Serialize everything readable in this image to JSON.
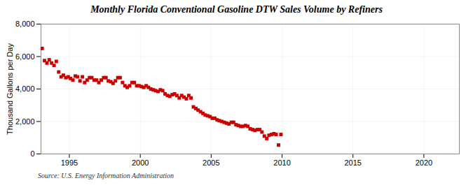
{
  "chart_data": {
    "type": "scatter",
    "title": "Monthly Florida Conventional Gasoline DTW Sales Volume by Refiners",
    "ylabel": "Thousand Gallons per Day",
    "caption": "Source: U.S. Energy Information Administration",
    "color": "#CC0000",
    "marker": "square",
    "grid": true,
    "xlim": [
      1993.0,
      2022.5
    ],
    "ylim": [
      0,
      8000
    ],
    "xticks": [
      1995,
      2000,
      2005,
      2010,
      2015,
      2020
    ],
    "yticks": [
      0,
      {
        "value": 2000,
        "label": "2,000"
      },
      {
        "value": 4000,
        "label": "4,000"
      },
      {
        "value": 6000,
        "label": "6,000"
      },
      {
        "value": 8000,
        "label": "8,000"
      }
    ],
    "x": [
      1993.08,
      1993.25,
      1993.42,
      1993.58,
      1993.75,
      1993.92,
      1994.08,
      1994.25,
      1994.42,
      1994.58,
      1994.75,
      1994.92,
      1995.08,
      1995.25,
      1995.42,
      1995.58,
      1995.75,
      1995.92,
      1996.08,
      1996.25,
      1996.42,
      1996.58,
      1996.75,
      1996.92,
      1997.08,
      1997.25,
      1997.42,
      1997.58,
      1997.75,
      1997.92,
      1998.08,
      1998.25,
      1998.42,
      1998.58,
      1998.75,
      1998.92,
      1999.08,
      1999.25,
      1999.42,
      1999.58,
      1999.75,
      1999.92,
      2000.08,
      2000.25,
      2000.42,
      2000.58,
      2000.75,
      2000.92,
      2001.08,
      2001.25,
      2001.42,
      2001.58,
      2001.75,
      2001.92,
      2002.08,
      2002.25,
      2002.42,
      2002.58,
      2002.75,
      2002.92,
      2003.08,
      2003.25,
      2003.42,
      2003.58,
      2003.75,
      2003.92,
      2004.08,
      2004.25,
      2004.42,
      2004.58,
      2004.75,
      2004.92,
      2005.08,
      2005.25,
      2005.42,
      2005.58,
      2005.75,
      2005.92,
      2006.08,
      2006.25,
      2006.42,
      2006.58,
      2006.75,
      2006.92,
      2007.08,
      2007.25,
      2007.42,
      2007.58,
      2007.75,
      2007.92,
      2008.08,
      2008.25,
      2008.42,
      2008.58,
      2008.75,
      2008.92,
      2009.08,
      2009.25,
      2009.42,
      2009.58,
      2009.75,
      2009.92
    ],
    "values": [
      6500,
      5750,
      5600,
      5800,
      5600,
      5450,
      5700,
      5050,
      4750,
      4850,
      4700,
      4750,
      4650,
      4550,
      4800,
      4750,
      4500,
      4750,
      4400,
      4550,
      4700,
      4700,
      4550,
      4550,
      4400,
      4550,
      4700,
      4700,
      4500,
      4450,
      4350,
      4500,
      4700,
      4700,
      4400,
      4200,
      4100,
      4200,
      4400,
      4400,
      4200,
      4200,
      4150,
      4100,
      4200,
      4100,
      4000,
      3950,
      3900,
      3850,
      3950,
      3900,
      3700,
      3600,
      3550,
      3650,
      3700,
      3600,
      3450,
      3600,
      3500,
      3400,
      3600,
      3450,
      2900,
      2800,
      2700,
      2600,
      2500,
      2400,
      2350,
      2300,
      2200,
      2200,
      2100,
      2050,
      2000,
      1950,
      1900,
      1850,
      1950,
      1950,
      1800,
      1750,
      1700,
      1700,
      1750,
      1700,
      1550,
      1500,
      1450,
      1500,
      1500,
      1350,
      1100,
      950,
      1150,
      1200,
      1250,
      1200,
      550,
      1200
    ]
  }
}
